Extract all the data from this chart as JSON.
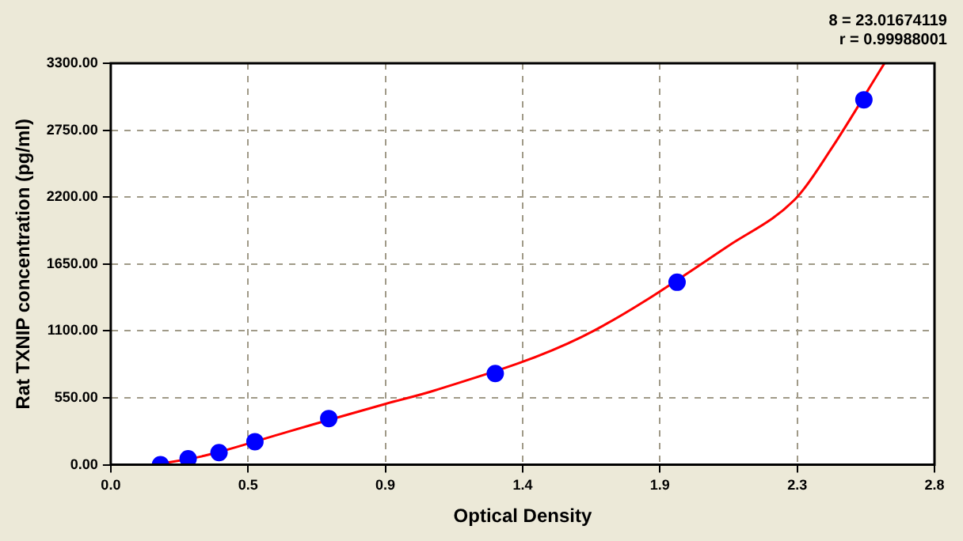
{
  "chart_data": {
    "type": "scatter",
    "xlabel": "Optical Density",
    "ylabel": "Rat TXNIP concentration (pg/ml)",
    "annotations": [
      "8 = 23.01674119",
      "r = 0.99988001"
    ],
    "series": [
      {
        "type": "line",
        "color": "#ff0000",
        "marker": "none",
        "x": [
          0.15,
          0.32,
          0.6,
          0.933,
          1.1,
          1.6,
          2.1,
          2.333,
          2.45,
          2.63
        ],
        "values": [
          0,
          75,
          270,
          500,
          610,
          1050,
          1800,
          2200,
          2600,
          3300
        ]
      },
      {
        "color": "#0000ff",
        "marker": "circle",
        "x": [
          0.169,
          0.263,
          0.368,
          0.49,
          0.741,
          1.307,
          1.925,
          2.56
        ],
        "values": [
          0,
          50,
          100,
          190,
          380,
          750,
          1500,
          3000
        ]
      }
    ],
    "xlim": [
      0,
      2.8
    ],
    "xticks": [
      {
        "value": 0,
        "label": "0.0"
      },
      {
        "value": 0.4667,
        "label": "0.5"
      },
      {
        "value": 0.9333,
        "label": "0.9"
      },
      {
        "value": 1.4,
        "label": "1.4"
      },
      {
        "value": 1.8667,
        "label": "1.9"
      },
      {
        "value": 2.3333,
        "label": "2.3"
      },
      {
        "value": 2.8,
        "label": "2.8"
      }
    ],
    "ylim": [
      0,
      3300
    ],
    "yticks": [
      {
        "value": 0,
        "label": "0.00"
      },
      {
        "value": 550,
        "label": "550.00"
      },
      {
        "value": 1100,
        "label": "1100.00"
      },
      {
        "value": 1650,
        "label": "1650.00"
      },
      {
        "value": 2200,
        "label": "2200.00"
      },
      {
        "value": 2750,
        "label": "2750.00"
      },
      {
        "value": 3300,
        "label": "3300.00"
      }
    ],
    "grid": true,
    "legend": false
  }
}
